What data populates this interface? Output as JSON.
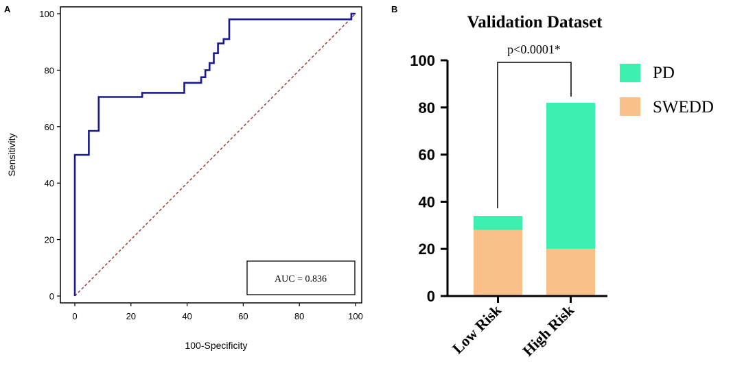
{
  "chart_data": [
    {
      "panel": "A",
      "type": "line",
      "title": "",
      "xlabel": "100-Specificity",
      "ylabel": "Sensitivity",
      "xlim": [
        0,
        100
      ],
      "ylim": [
        0,
        100
      ],
      "xticks": [
        "0",
        "20",
        "40",
        "60",
        "80",
        "100"
      ],
      "yticks": [
        "0",
        "20",
        "40",
        "60",
        "80",
        "100"
      ],
      "annotation": "AUC = 0.836",
      "series": [
        {
          "name": "ROC curve",
          "color": "#1a1a8c",
          "x": [
            0,
            0,
            5,
            5,
            8.5,
            8.5,
            24,
            24,
            39,
            39,
            45,
            45,
            46.5,
            46.5,
            48,
            48,
            49.5,
            49.5,
            51,
            51,
            53,
            53,
            55,
            55,
            98.5,
            98.5,
            100
          ],
          "y": [
            0,
            50,
            50,
            58.5,
            58.5,
            70.5,
            70.5,
            72,
            72,
            75.5,
            75.5,
            77.5,
            77.5,
            80,
            80,
            82.5,
            82.5,
            86,
            86,
            89.5,
            89.5,
            91,
            91,
            98,
            98,
            100,
            100
          ]
        },
        {
          "name": "Reference line",
          "color": "#a0302a",
          "x": [
            0,
            100
          ],
          "y": [
            0,
            100
          ]
        }
      ]
    },
    {
      "panel": "B",
      "type": "bar",
      "stacked": true,
      "title": "Validation Dataset",
      "xlabel": "",
      "ylabel": "",
      "ylim": [
        0,
        100
      ],
      "yticks": [
        "0",
        "20",
        "40",
        "60",
        "80",
        "100"
      ],
      "categories": [
        "Low Risk",
        "High Risk"
      ],
      "series": [
        {
          "name": "SWEDD",
          "color": "#f9c08a",
          "values": [
            28,
            20
          ]
        },
        {
          "name": "PD",
          "color": "#3ef0b0",
          "values": [
            6,
            62
          ]
        }
      ],
      "legend": [
        "PD",
        "SWEDD"
      ],
      "annotation": "p<0.0001*"
    }
  ]
}
